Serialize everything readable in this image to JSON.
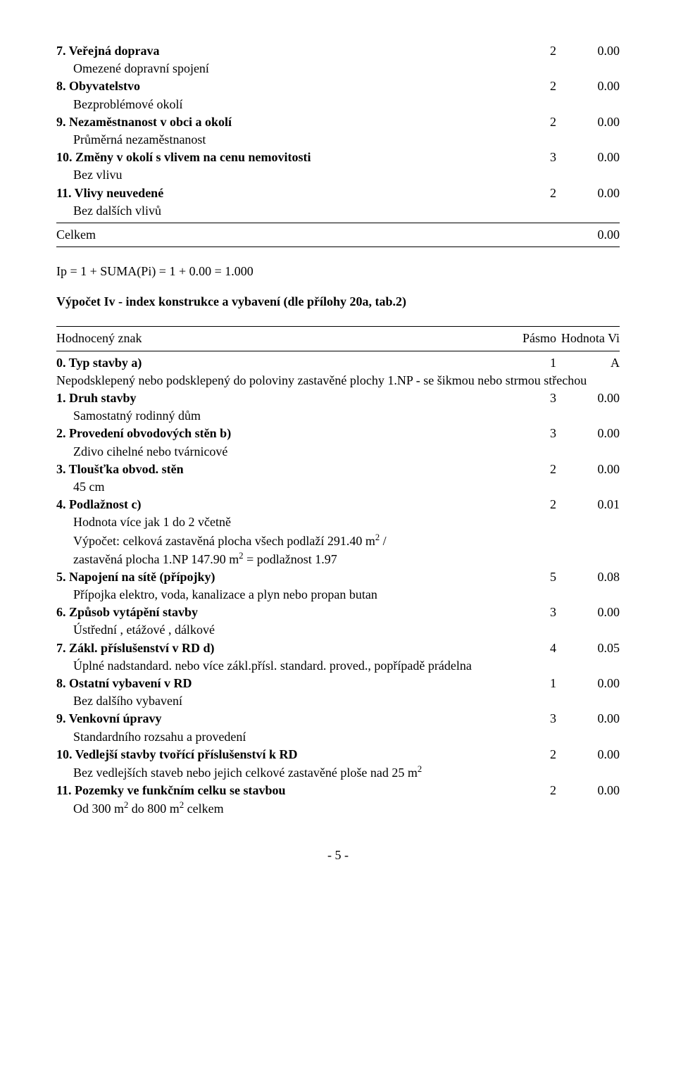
{
  "topItems": [
    {
      "head": {
        "label": "7. Veřejná doprava",
        "a": "2",
        "b": "0.00",
        "bold": true
      },
      "sub": "Omezené dopravní spojení"
    },
    {
      "head": {
        "label": "8. Obyvatelstvo",
        "a": "2",
        "b": "0.00",
        "bold": true
      },
      "sub": "Bezproblémové okolí"
    },
    {
      "head": {
        "label": "9. Nezaměstnanost v obci a okolí",
        "a": "2",
        "b": "0.00",
        "bold": true
      },
      "sub": "Průměrná nezaměstnanost"
    },
    {
      "head": {
        "label": "10. Změny v okolí s vlivem na cenu nemovitosti",
        "a": "3",
        "b": "0.00",
        "bold": true
      },
      "sub": "Bez vlivu"
    },
    {
      "head": {
        "label": "11. Vlivy neuvedené",
        "a": "2",
        "b": "0.00",
        "bold": true
      },
      "sub": "Bez dalších vlivů"
    }
  ],
  "celkem": {
    "label": "Celkem",
    "b": "0.00"
  },
  "ipLine": "Ip = 1 + SUMA(Pi) = 1 + 0.00 = 1.000",
  "ivTitle": "Výpočet Iv - index konstrukce a vybavení (dle přílohy 20a, tab.2)",
  "ivHeader": {
    "label": "Hodnocený znak",
    "a": "Pásmo",
    "b": "Hodnota Vi"
  },
  "iv0": {
    "head": {
      "label": "0. Typ stavby a)",
      "a": "1",
      "b": "A",
      "bold": true
    },
    "sub": "Nepodsklepený nebo podsklepený do poloviny zastavěné plochy 1.NP - se šikmou nebo strmou střechou"
  },
  "ivItems": [
    {
      "head": {
        "label": "1. Druh stavby",
        "a": "3",
        "b": "0.00",
        "bold": true
      },
      "sub": "Samostatný rodinný dům"
    },
    {
      "head": {
        "label": "2. Provedení obvodových stěn b)",
        "a": "3",
        "b": "0.00",
        "bold": true
      },
      "sub": "Zdivo cihelné nebo tvárnicové"
    },
    {
      "head": {
        "label": "3. Tloušťka obvod. stěn",
        "a": "2",
        "b": "0.00",
        "bold": true
      },
      "sub": "45 cm"
    }
  ],
  "iv4": {
    "head": {
      "label": "4. Podlažnost c)",
      "a": "2",
      "b": "0.01",
      "bold": true
    },
    "sub1": "Hodnota více jak 1 do 2 včetně",
    "sub2a": "Výpočet: celková zastavěná plocha všech podlaží 291.40 m",
    "sub2b": " /",
    "sub3a": "zastavěná plocha 1.NP 147.90 m",
    "sub3b": " = podlažnost 1.97"
  },
  "ivRest": [
    {
      "head": {
        "label": "5. Napojení na sítě (přípojky)",
        "a": "5",
        "b": "0.08",
        "bold": true
      },
      "sub": "Přípojka elektro, voda, kanalizace a plyn nebo propan butan"
    },
    {
      "head": {
        "label": "6. Způsob vytápění stavby",
        "a": "3",
        "b": "0.00",
        "bold": true
      },
      "sub": "Ústřední , etážové , dálkové"
    },
    {
      "head": {
        "label": "7. Zákl. příslušenství v RD d)",
        "a": "4",
        "b": "0.05",
        "bold": true
      },
      "sub": "Úplné nadstandard. nebo více zákl.přísl. standard. proved., popřípadě prádelna"
    },
    {
      "head": {
        "label": "8. Ostatní vybavení v RD",
        "a": "1",
        "b": "0.00",
        "bold": true
      },
      "sub": "Bez dalšího vybavení"
    },
    {
      "head": {
        "label": "9. Venkovní úpravy",
        "a": "3",
        "b": "0.00",
        "bold": true
      },
      "sub": "Standardního rozsahu a provedení"
    }
  ],
  "iv10": {
    "head": {
      "label": "10. Vedlejší stavby tvořící příslušenství k RD",
      "a": "2",
      "b": "0.00",
      "bold": true
    },
    "subA": "Bez vedlejších staveb nebo jejich celkové zastavěné ploše nad 25 m"
  },
  "iv11": {
    "head": {
      "label": "11. Pozemky ve funkčním celku se stavbou",
      "a": "2",
      "b": "0.00",
      "bold": true
    },
    "subA": "Od 300 m",
    "subB": " do 800 m",
    "subC": " celkem"
  },
  "pageFoot": "- 5 -"
}
